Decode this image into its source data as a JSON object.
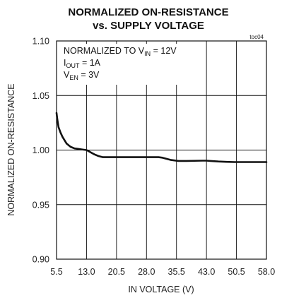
{
  "chart_data": {
    "type": "line",
    "title_line1": "NORMALIZED ON-RESISTANCE",
    "title_line2": "vs. SUPPLY VOLTAGE",
    "figure_tag": "toc04",
    "xlabel": "IN VOLTAGE (V)",
    "ylabel": "NORMALIZED ON-RESISTANCE",
    "xlim": [
      5.5,
      58.0
    ],
    "ylim": [
      0.9,
      1.1
    ],
    "x_ticks": [
      "5.5",
      "13.0",
      "20.5",
      "28.0",
      "35.5",
      "43.0",
      "50.5",
      "58.0"
    ],
    "y_ticks": [
      "0.90",
      "0.95",
      "1.00",
      "1.05",
      "1.10"
    ],
    "grid": true,
    "annotation": {
      "line1_main": "NORMALIZED TO V",
      "line1_sub": "IN",
      "line1_tail": " = 12V",
      "line2_main": "I",
      "line2_sub": "OUT",
      "line2_tail": " = 1A",
      "line3_main": "V",
      "line3_sub": "EN",
      "line3_tail": " = 3V"
    },
    "series": [
      {
        "x": [
          5.5,
          5.7,
          6.0,
          6.5,
          7.0,
          8.0,
          9.0,
          10.0,
          11.0,
          12.0,
          13.0,
          14.0,
          15.0,
          16.0,
          17.0,
          18.0,
          20.0,
          24.0,
          28.0,
          31.0,
          32.0,
          33.0,
          34.0,
          35.0,
          36.0,
          38.0,
          42.0,
          43.0,
          44.0,
          46.0,
          48.0,
          50.0,
          54.0,
          58.0
        ],
        "y": [
          1.034,
          1.028,
          1.021,
          1.016,
          1.012,
          1.006,
          1.003,
          1.0015,
          1.001,
          1.0005,
          1.0,
          0.998,
          0.996,
          0.9945,
          0.9935,
          0.9935,
          0.9935,
          0.9935,
          0.9935,
          0.9935,
          0.993,
          0.992,
          0.991,
          0.9905,
          0.99,
          0.99,
          0.9903,
          0.9903,
          0.99,
          0.9895,
          0.9892,
          0.989,
          0.989,
          0.989
        ]
      }
    ]
  }
}
